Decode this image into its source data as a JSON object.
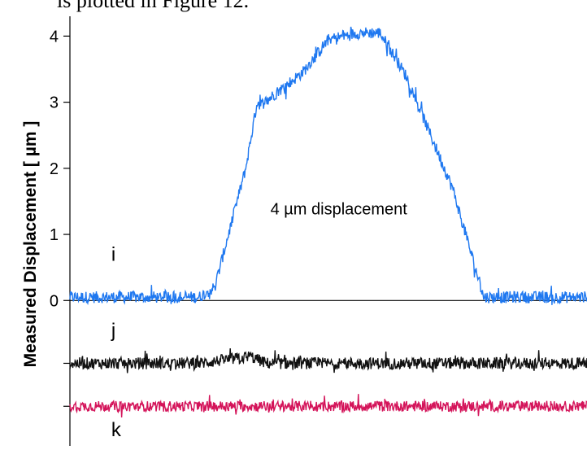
{
  "page": {
    "clipped_caption": "is plotted in Figure 12."
  },
  "chart_data": {
    "type": "line",
    "title": "",
    "xlabel": "",
    "ylabel": "Measured Displacement [ µm ]",
    "ylim": [
      -2.2,
      4.3
    ],
    "yticks": [
      0,
      1,
      2,
      3,
      4
    ],
    "extra_ticks_unlabeled": [
      -0.95,
      -1.6
    ],
    "grid": false,
    "series": [
      {
        "name": "i",
        "color": "#1f78f0",
        "baseline": 0,
        "x": [
          0,
          0.25,
          0.28,
          0.34,
          0.36,
          0.45,
          0.5,
          0.56,
          0.6,
          0.65,
          0.74,
          0.8,
          1.0
        ],
        "values": [
          0.05,
          0.05,
          0.2,
          2.0,
          2.9,
          3.45,
          3.95,
          4.05,
          4.05,
          3.4,
          1.7,
          0.05,
          0.05
        ],
        "noise": 0.09
      },
      {
        "name": "j",
        "color": "#111111",
        "baseline": -0.95,
        "x": [
          0,
          0.25,
          0.35,
          0.38,
          0.6,
          1.0
        ],
        "values": [
          -0.95,
          -0.95,
          -0.85,
          -0.95,
          -0.95,
          -0.95
        ],
        "noise": 0.09
      },
      {
        "name": "k",
        "color": "#d4145a",
        "baseline": -1.6,
        "x": [
          0,
          1.0
        ],
        "values": [
          -1.6,
          -1.6
        ],
        "noise": 0.08
      }
    ],
    "annotations": [
      {
        "text": "4 µm displacement",
        "x": 0.52,
        "y": 1.3
      }
    ]
  }
}
